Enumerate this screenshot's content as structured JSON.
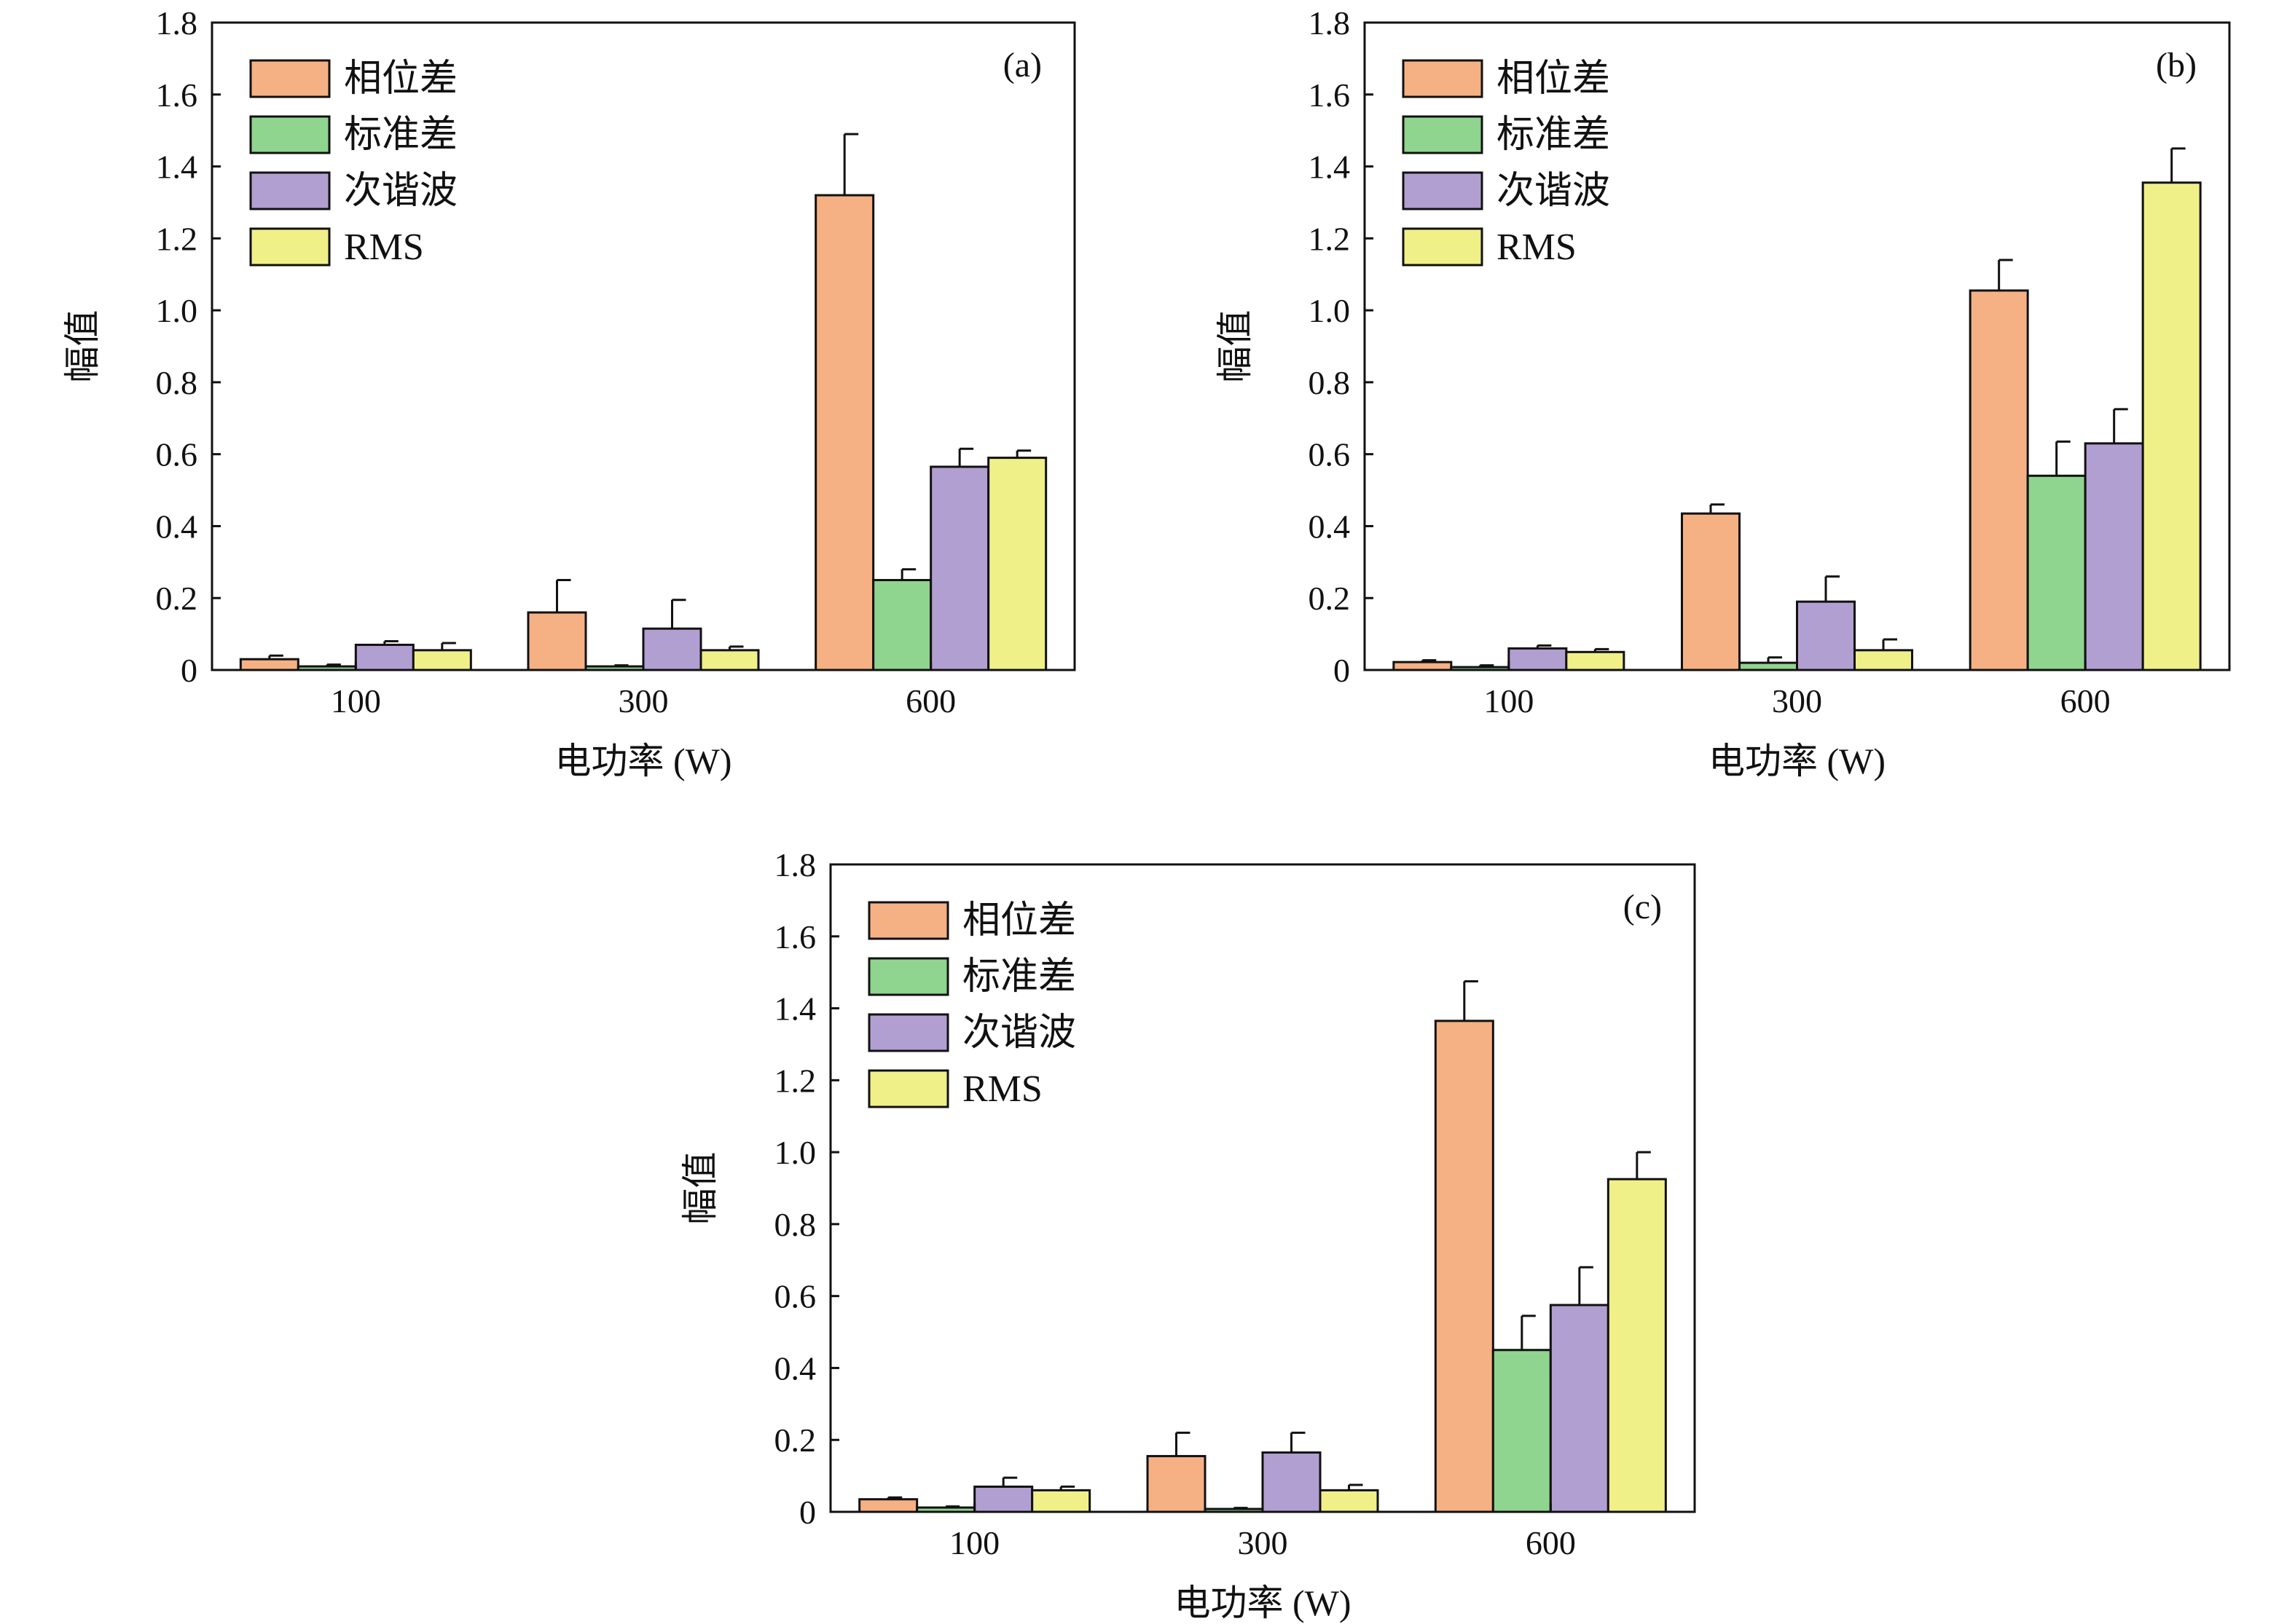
{
  "chart_data": [
    {
      "type": "bar",
      "panel_label": "(a)",
      "categories": [
        "100",
        "300",
        "600"
      ],
      "xlabel": "电功率 (W)",
      "ylabel": "幅值",
      "ylim": [
        0,
        1.8
      ],
      "yticks": [
        "0",
        "0.2",
        "0.4",
        "0.6",
        "0.8",
        "1.0",
        "1.2",
        "1.4",
        "1.6",
        "1.8"
      ],
      "legend_position": "top-left",
      "grid": false,
      "error_bars": true,
      "series": [
        {
          "name": "相位差",
          "color": "#f5b183",
          "values": [
            0.03,
            0.16,
            1.32
          ],
          "errors": [
            0.01,
            0.09,
            0.17
          ]
        },
        {
          "name": "标准差",
          "color": "#8fd48f",
          "values": [
            0.01,
            0.01,
            0.25
          ],
          "errors": [
            0.005,
            0.003,
            0.03
          ]
        },
        {
          "name": "次谐波",
          "color": "#b29fd2",
          "values": [
            0.07,
            0.115,
            0.565
          ],
          "errors": [
            0.01,
            0.08,
            0.05
          ]
        },
        {
          "name": "RMS",
          "color": "#f0f088",
          "values": [
            0.055,
            0.055,
            0.59
          ],
          "errors": [
            0.02,
            0.01,
            0.02
          ]
        }
      ]
    },
    {
      "type": "bar",
      "panel_label": "(b)",
      "categories": [
        "100",
        "300",
        "600"
      ],
      "xlabel": "电功率 (W)",
      "ylabel": "幅值",
      "ylim": [
        0,
        1.8
      ],
      "yticks": [
        "0",
        "0.2",
        "0.4",
        "0.6",
        "0.8",
        "1.0",
        "1.2",
        "1.4",
        "1.6",
        "1.8"
      ],
      "legend_position": "top-left",
      "grid": false,
      "error_bars": true,
      "series": [
        {
          "name": "相位差",
          "color": "#f5b183",
          "values": [
            0.022,
            0.435,
            1.055
          ],
          "errors": [
            0.005,
            0.025,
            0.085
          ]
        },
        {
          "name": "标准差",
          "color": "#8fd48f",
          "values": [
            0.008,
            0.02,
            0.54
          ],
          "errors": [
            0.005,
            0.015,
            0.095
          ]
        },
        {
          "name": "次谐波",
          "color": "#b29fd2",
          "values": [
            0.06,
            0.19,
            0.63
          ],
          "errors": [
            0.008,
            0.07,
            0.095
          ]
        },
        {
          "name": "RMS",
          "color": "#f0f088",
          "values": [
            0.05,
            0.055,
            1.355
          ],
          "errors": [
            0.008,
            0.03,
            0.095
          ]
        }
      ]
    },
    {
      "type": "bar",
      "panel_label": "(c)",
      "categories": [
        "100",
        "300",
        "600"
      ],
      "xlabel": "电功率 (W)",
      "ylabel": "幅值",
      "ylim": [
        0,
        1.8
      ],
      "yticks": [
        "0",
        "0.2",
        "0.4",
        "0.6",
        "0.8",
        "1.0",
        "1.2",
        "1.4",
        "1.6",
        "1.8"
      ],
      "legend_position": "top-left",
      "grid": false,
      "error_bars": true,
      "series": [
        {
          "name": "相位差",
          "color": "#f5b183",
          "values": [
            0.035,
            0.155,
            1.365
          ],
          "errors": [
            0.005,
            0.065,
            0.11
          ]
        },
        {
          "name": "标准差",
          "color": "#8fd48f",
          "values": [
            0.012,
            0.008,
            0.45
          ],
          "errors": [
            0.003,
            0.003,
            0.095
          ]
        },
        {
          "name": "次谐波",
          "color": "#b29fd2",
          "values": [
            0.07,
            0.165,
            0.575
          ],
          "errors": [
            0.025,
            0.055,
            0.105
          ]
        },
        {
          "name": "RMS",
          "color": "#f0f088",
          "values": [
            0.06,
            0.06,
            0.925
          ],
          "errors": [
            0.01,
            0.015,
            0.075
          ]
        }
      ]
    }
  ]
}
